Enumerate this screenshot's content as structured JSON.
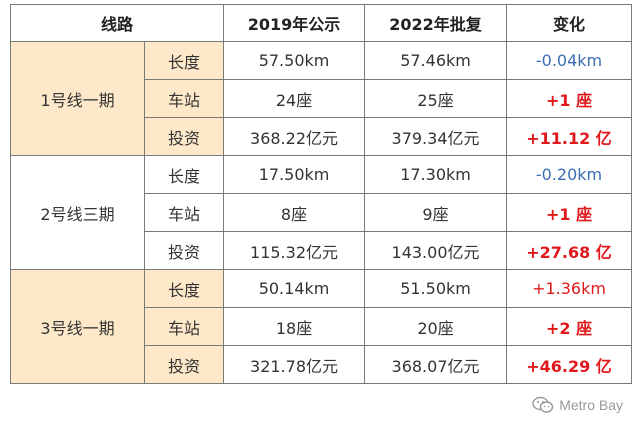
{
  "header": {
    "line": "线路",
    "item": "",
    "y2019": "2019年公示",
    "y2022": "2022年批复",
    "change": "变化"
  },
  "groups": [
    {
      "name": "1号线一期",
      "rows": [
        {
          "item": "长度",
          "v2019": "57.50km",
          "v2022": "57.46km",
          "change": "-0.04km",
          "change_style": "blue"
        },
        {
          "item": "车站",
          "v2019": "24座",
          "v2022": "25座",
          "change": "+1 座",
          "change_style": "red-bold"
        },
        {
          "item": "投资",
          "v2019": "368.22亿元",
          "v2022": "379.34亿元",
          "change": "+11.12 亿",
          "change_style": "red-bold"
        }
      ]
    },
    {
      "name": "2号线三期",
      "rows": [
        {
          "item": "长度",
          "v2019": "17.50km",
          "v2022": "17.30km",
          "change": "-0.20km",
          "change_style": "blue"
        },
        {
          "item": "车站",
          "v2019": "8座",
          "v2022": "9座",
          "change": "+1 座",
          "change_style": "red-bold"
        },
        {
          "item": "投资",
          "v2019": "115.32亿元",
          "v2022": "143.00亿元",
          "change": "+27.68 亿",
          "change_style": "red-bold"
        }
      ]
    },
    {
      "name": "3号线一期",
      "rows": [
        {
          "item": "长度",
          "v2019": "50.14km",
          "v2022": "51.50km",
          "change": "+1.36km",
          "change_style": "red"
        },
        {
          "item": "车站",
          "v2019": "18座",
          "v2022": "20座",
          "change": "+2 座",
          "change_style": "red-bold"
        },
        {
          "item": "投资",
          "v2019": "321.78亿元",
          "v2022": "368.07亿元",
          "change": "+46.29 亿",
          "change_style": "red-bold"
        }
      ]
    }
  ],
  "colors": {
    "shade": "#fde9c9",
    "red": "#e0191c",
    "blue": "#3b6db3",
    "border": "#7a7a7a"
  },
  "watermark": {
    "icon": "wechat-icon",
    "text": "Metro Bay"
  }
}
